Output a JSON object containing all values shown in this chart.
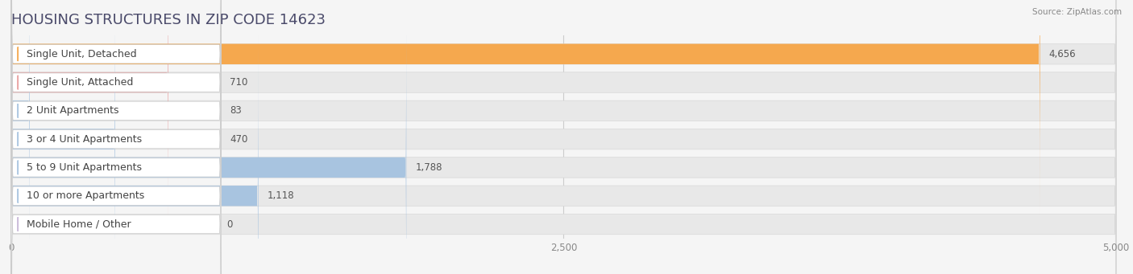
{
  "title": "HOUSING STRUCTURES IN ZIP CODE 14623",
  "source": "Source: ZipAtlas.com",
  "categories": [
    "Single Unit, Detached",
    "Single Unit, Attached",
    "2 Unit Apartments",
    "3 or 4 Unit Apartments",
    "5 to 9 Unit Apartments",
    "10 or more Apartments",
    "Mobile Home / Other"
  ],
  "values": [
    4656,
    710,
    83,
    470,
    1788,
    1118,
    0
  ],
  "bar_colors": [
    "#F5A84E",
    "#E8A0A0",
    "#A8C4E0",
    "#A8C4E0",
    "#A8C4E0",
    "#A8C4E0",
    "#C8B8D8"
  ],
  "xlim": [
    0,
    5000
  ],
  "xticks": [
    0,
    2500,
    5000
  ],
  "xtick_labels": [
    "0",
    "2,500",
    "5,000"
  ],
  "background_color": "#f5f5f5",
  "bar_bg_color": "#e8e8e8",
  "row_bg_color": "#f0f0f0",
  "title_fontsize": 13,
  "label_fontsize": 9,
  "value_fontsize": 8.5
}
